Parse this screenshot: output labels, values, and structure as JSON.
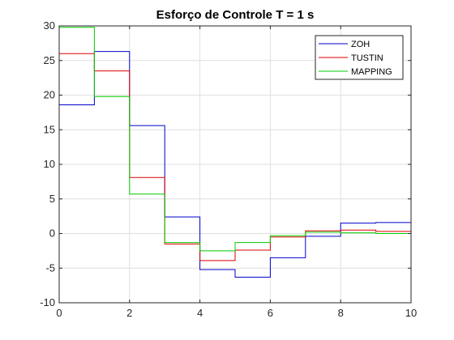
{
  "chart_data": {
    "type": "line",
    "step": true,
    "title": "Esforço de Controle T = 1 s",
    "xlabel": "",
    "ylabel": "",
    "xlim": [
      0,
      10
    ],
    "ylim": [
      -10,
      30
    ],
    "xticks": [
      0,
      2,
      4,
      6,
      8,
      10
    ],
    "yticks": [
      -10,
      -5,
      0,
      5,
      10,
      15,
      20,
      25,
      30
    ],
    "grid": true,
    "legend_position": "top-right",
    "x": [
      0,
      1,
      2,
      3,
      4,
      5,
      6,
      7,
      8,
      9,
      10
    ],
    "series": [
      {
        "name": "ZOH",
        "color": "#0000cc",
        "values": [
          18.6,
          26.3,
          15.6,
          2.4,
          -5.2,
          -6.3,
          -3.5,
          -0.4,
          1.5,
          1.6,
          1.0
        ]
      },
      {
        "name": "TUSTIN",
        "color": "#dd0000",
        "values": [
          26.0,
          23.5,
          8.1,
          -1.5,
          -3.9,
          -2.4,
          -0.5,
          0.4,
          0.5,
          0.3,
          0.3
        ]
      },
      {
        "name": "MAPPING",
        "color": "#00cc00",
        "values": [
          29.8,
          19.8,
          5.7,
          -1.3,
          -2.5,
          -1.3,
          -0.3,
          0.2,
          0.1,
          0.0,
          0.0
        ]
      }
    ]
  }
}
